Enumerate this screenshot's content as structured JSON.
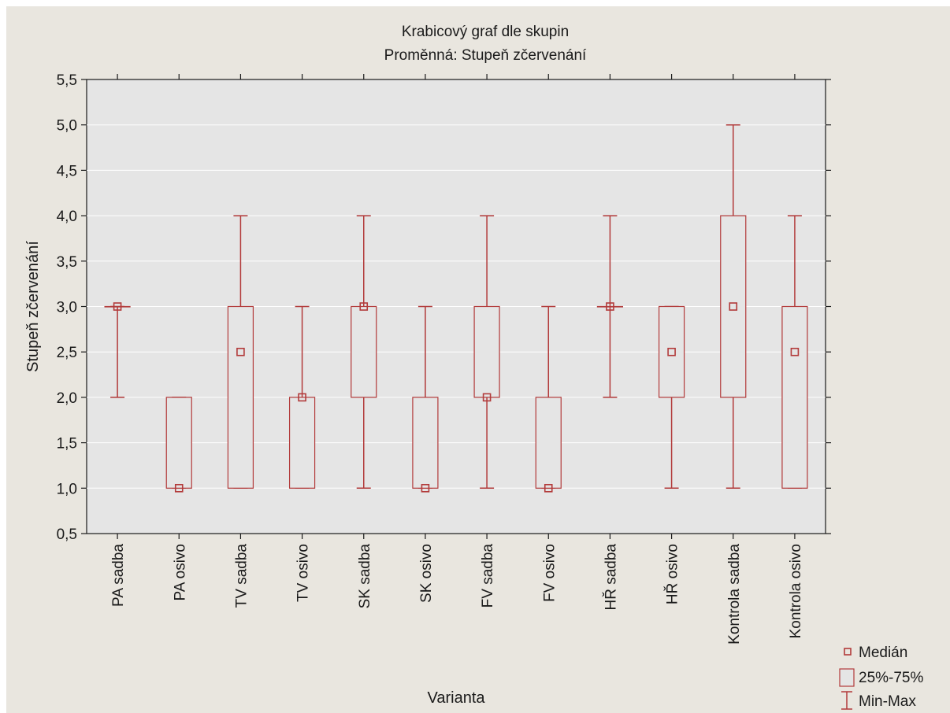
{
  "chart_data": {
    "type": "box",
    "title": "Krabicový graf dle skupin",
    "subtitle": "Proměnná: Stupeň zčervenání",
    "xlabel": "Varianta",
    "ylabel": "Stupeň zčervenání",
    "ylim": [
      0.5,
      5.5
    ],
    "yticks": [
      0.5,
      1.0,
      1.5,
      2.0,
      2.5,
      3.0,
      3.5,
      4.0,
      4.5,
      5.0,
      5.5
    ],
    "ytick_labels": [
      "0,5",
      "1,0",
      "1,5",
      "2,0",
      "2,5",
      "3,0",
      "3,5",
      "4,0",
      "4,5",
      "5,0",
      "5,5"
    ],
    "grid": true,
    "legend_position": "bottom-right",
    "legend": [
      "Medián",
      "25%-75%",
      "Min-Max"
    ],
    "colors": {
      "box": "#b23a3a",
      "whisker": "#b23a3a",
      "median": "#b23a3a",
      "plot_bg": "#e5e5e5",
      "grid": "#ffffff"
    },
    "categories": [
      "PA sadba",
      "PA osivo",
      "TV sadba",
      "TV osivo",
      "SK sadba",
      "SK osivo",
      "FV sadba",
      "FV osivo",
      "HŘ sadba",
      "HŘ osivo",
      "Kontrola sadba",
      "Kontrola osivo"
    ],
    "boxes": [
      {
        "min": 2.0,
        "q1": 3.0,
        "median": 3.0,
        "q3": 3.0,
        "max": 3.0
      },
      {
        "min": 1.0,
        "q1": 1.0,
        "median": 1.0,
        "q3": 2.0,
        "max": 2.0
      },
      {
        "min": 1.0,
        "q1": 1.0,
        "median": 2.5,
        "q3": 3.0,
        "max": 4.0
      },
      {
        "min": 1.0,
        "q1": 1.0,
        "median": 2.0,
        "q3": 2.0,
        "max": 3.0
      },
      {
        "min": 1.0,
        "q1": 2.0,
        "median": 3.0,
        "q3": 3.0,
        "max": 4.0
      },
      {
        "min": 1.0,
        "q1": 1.0,
        "median": 1.0,
        "q3": 2.0,
        "max": 3.0
      },
      {
        "min": 1.0,
        "q1": 2.0,
        "median": 2.0,
        "q3": 3.0,
        "max": 4.0
      },
      {
        "min": 1.0,
        "q1": 1.0,
        "median": 1.0,
        "q3": 2.0,
        "max": 3.0
      },
      {
        "min": 2.0,
        "q1": 3.0,
        "median": 3.0,
        "q3": 3.0,
        "max": 4.0
      },
      {
        "min": 1.0,
        "q1": 2.0,
        "median": 2.5,
        "q3": 3.0,
        "max": 3.0
      },
      {
        "min": 1.0,
        "q1": 2.0,
        "median": 3.0,
        "q3": 4.0,
        "max": 5.0
      },
      {
        "min": 1.0,
        "q1": 1.0,
        "median": 2.5,
        "q3": 3.0,
        "max": 4.0
      }
    ]
  }
}
